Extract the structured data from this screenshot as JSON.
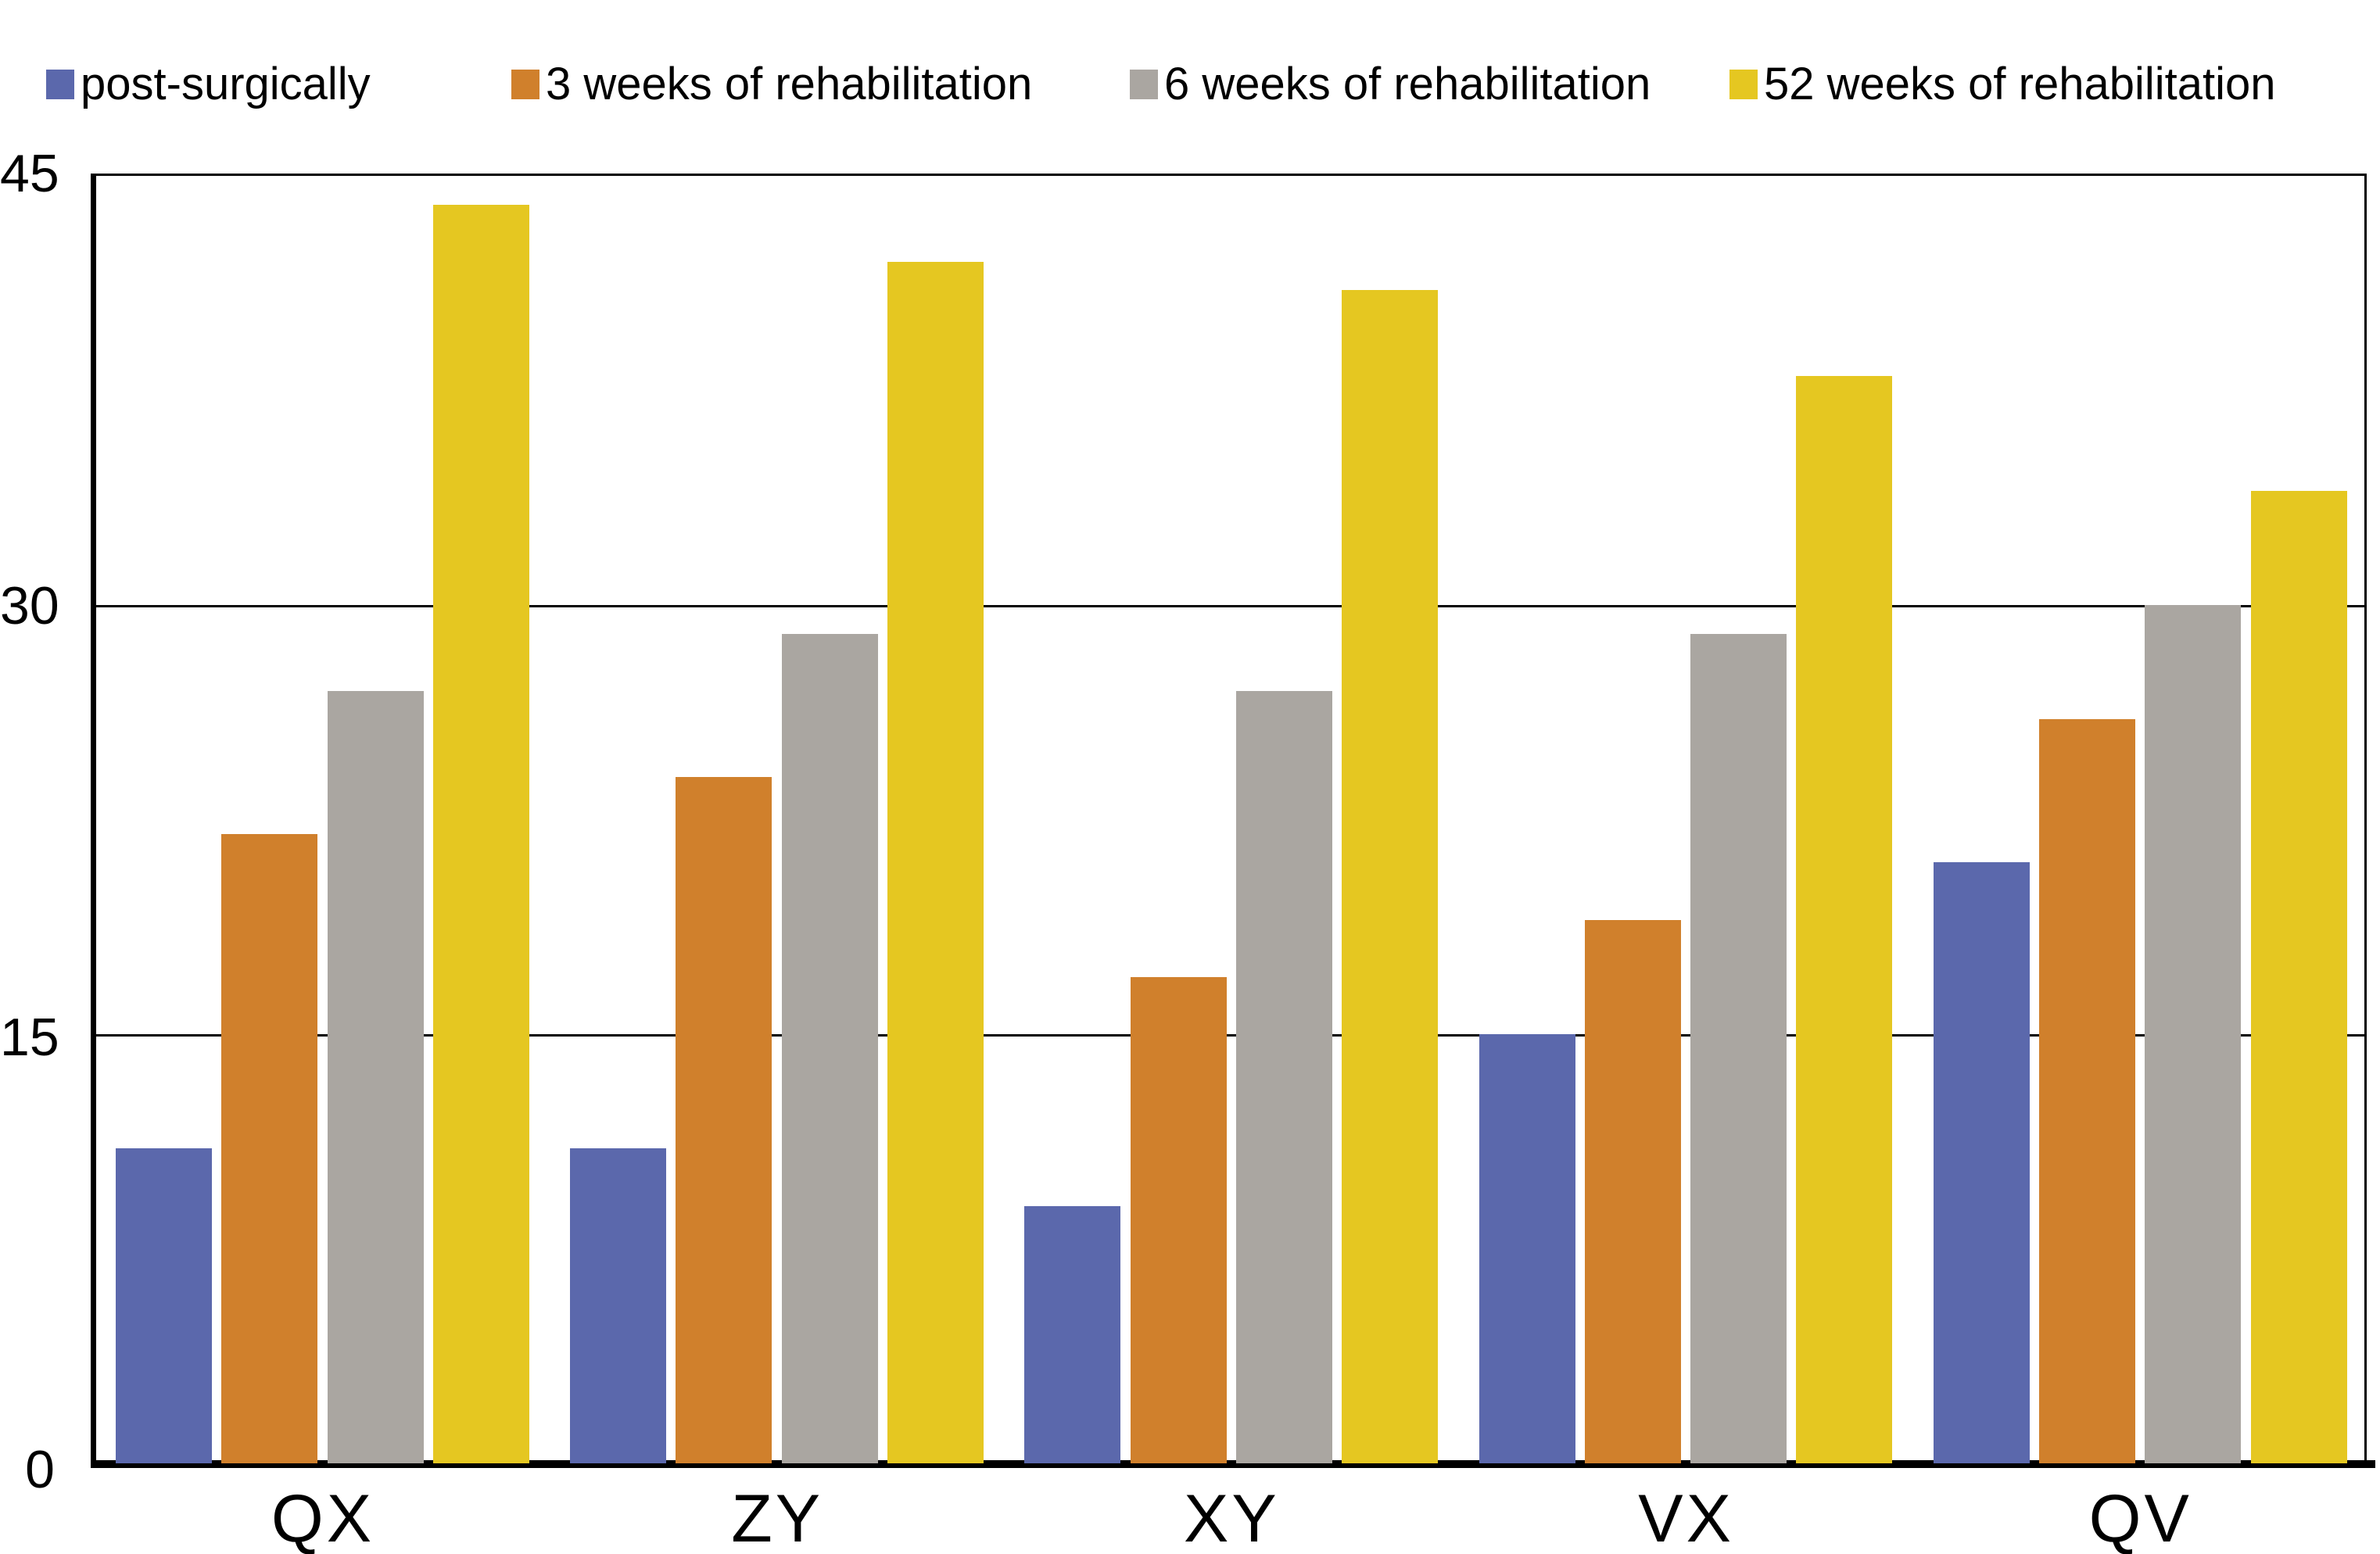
{
  "chart_data": {
    "type": "bar",
    "title": "",
    "xlabel": "",
    "ylabel": "",
    "categories": [
      "QX",
      "ZY",
      "XY",
      "VX",
      "QV"
    ],
    "series": [
      {
        "name": "post-surgically",
        "color": "#5B68AC",
        "values": [
          11,
          11,
          9,
          15,
          21
        ]
      },
      {
        "name": "3 weeks of rehabilitation",
        "color": "#D0802C",
        "values": [
          22,
          24,
          17,
          19,
          26
        ]
      },
      {
        "name": "6 weeks of rehabilitation",
        "color": "#AAA6A1",
        "values": [
          27,
          29,
          27,
          29,
          30
        ]
      },
      {
        "name": "52 weeks of rehabilitation",
        "color": "#E5C721",
        "values": [
          44,
          42,
          41,
          38,
          34
        ]
      }
    ],
    "ylim": [
      0,
      45
    ],
    "yticks": [
      0,
      15,
      30,
      45
    ],
    "grid": true,
    "legend_position": "top",
    "background": "#ffffff",
    "axis_color": "#000000"
  },
  "legend": {
    "items": [
      {
        "label": "post-surgically"
      },
      {
        "label": "3 weeks of rehabilitation"
      },
      {
        "label": "6 weeks of rehabilitation"
      },
      {
        "label": "52 weeks of rehabilitation"
      }
    ]
  },
  "y_axis": {
    "tick_labels": [
      "45",
      "30",
      "15",
      "0"
    ]
  }
}
